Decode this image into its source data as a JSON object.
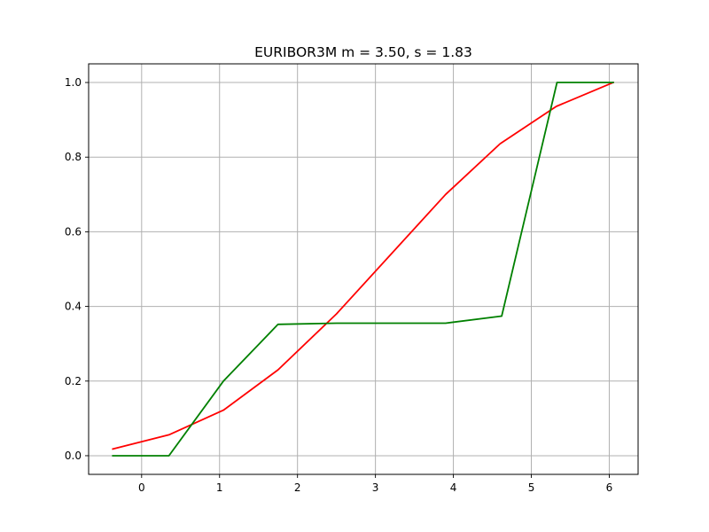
{
  "chart_data": {
    "type": "line",
    "title": "EURIBOR3M  m = 3.50,  s = 1.83",
    "xlabel": "",
    "ylabel": "",
    "xlim": [
      -0.68,
      6.37
    ],
    "ylim": [
      -0.05,
      1.05
    ],
    "xticks": [
      0,
      1,
      2,
      3,
      4,
      5,
      6
    ],
    "xtick_labels": [
      "0",
      "1",
      "2",
      "3",
      "4",
      "5",
      "6"
    ],
    "yticks": [
      0.0,
      0.2,
      0.4,
      0.6,
      0.8,
      1.0
    ],
    "ytick_labels": [
      "0.0",
      "0.2",
      "0.4",
      "0.6",
      "0.8",
      "1.0"
    ],
    "grid": true,
    "series": [
      {
        "color": "#ff0000",
        "x": [
          -0.37,
          0.35,
          1.05,
          1.75,
          2.5,
          3.9,
          4.6,
          5.32,
          6.05
        ],
        "y": [
          0.018,
          0.056,
          0.122,
          0.23,
          0.38,
          0.7,
          0.836,
          0.936,
          1.0
        ]
      },
      {
        "color": "#008000",
        "x": [
          -0.37,
          0.35,
          1.05,
          1.75,
          2.5,
          3.9,
          4.62,
          5.33,
          6.05
        ],
        "y": [
          0.0,
          0.0,
          0.2,
          0.352,
          0.355,
          0.355,
          0.374,
          1.0,
          1.0
        ]
      }
    ]
  }
}
